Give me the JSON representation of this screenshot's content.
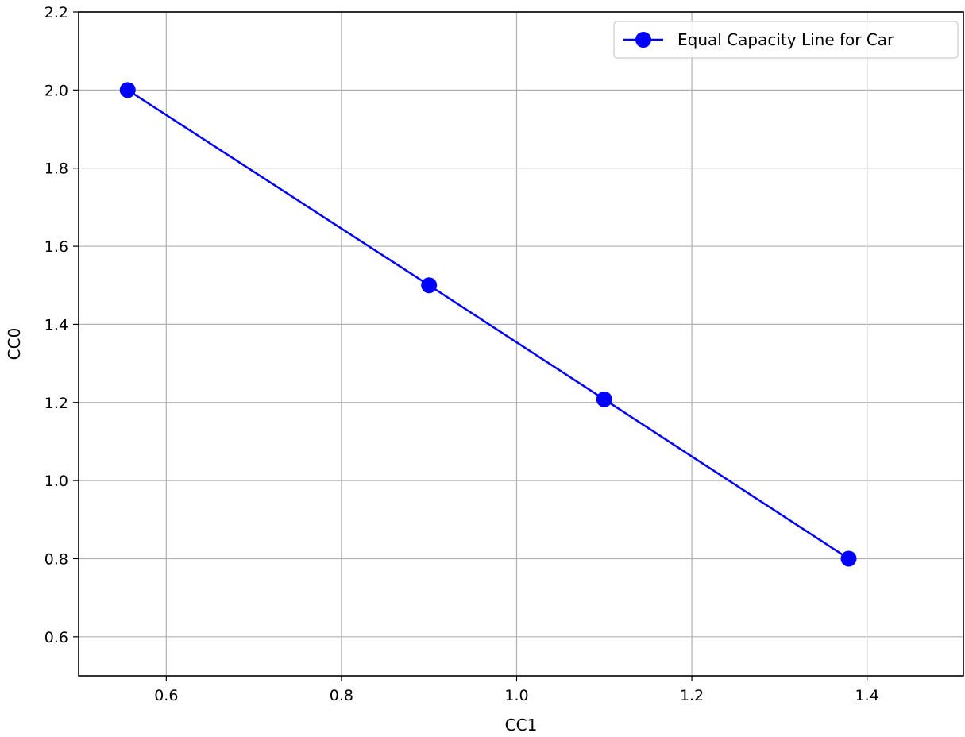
{
  "chart_data": {
    "type": "line",
    "xlabel": "CC1",
    "ylabel": "CC0",
    "xlim": [
      0.5,
      1.51
    ],
    "ylim": [
      0.5,
      2.2
    ],
    "x_ticks": [
      "0.6",
      "0.8",
      "1.0",
      "1.2",
      "1.4"
    ],
    "y_ticks": [
      "0.6",
      "0.8",
      "1.0",
      "1.2",
      "1.4",
      "1.6",
      "1.8",
      "2.0",
      "2.2"
    ],
    "grid": true,
    "legend": {
      "placement": "top-right",
      "entries": [
        "Equal Capacity Line for Car"
      ]
    },
    "series": [
      {
        "name": "Equal Capacity Line for Car",
        "color": "#0000ff",
        "marker": "circle",
        "x": [
          0.556,
          0.9,
          1.1,
          1.379
        ],
        "y": [
          2.0,
          1.5,
          1.208,
          0.8
        ]
      }
    ]
  }
}
